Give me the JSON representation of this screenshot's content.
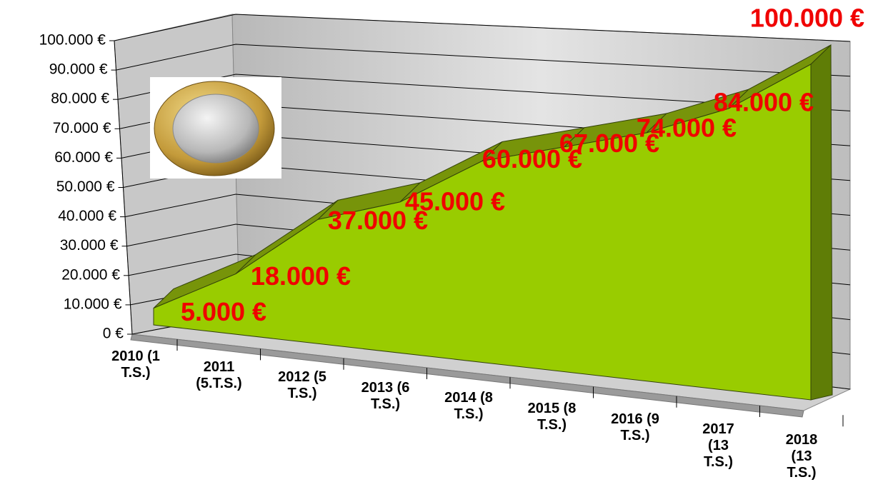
{
  "chart_data": {
    "type": "area3d",
    "categories": [
      "2010 (1 T.S.)",
      "2011 (5.T.S.)",
      "2012 (5 T.S.)",
      "2013 (6 T.S.)",
      "2014 (8 T.S.)",
      "2015 (8 T.S.)",
      "2016 (9 T.S.)",
      "2017 (13 T.S.)",
      "2018 (13 T.S.)"
    ],
    "values": [
      5000,
      18000,
      37000,
      45000,
      60000,
      67000,
      74000,
      84000,
      100000
    ],
    "value_labels": [
      "5.000 €",
      "18.000 €",
      "37.000 €",
      "45.000 €",
      "60.000 €",
      "67.000 €",
      "74.000 €",
      "84.000 €",
      "100.000 €"
    ],
    "color": "#99cc00",
    "ylim": [
      0,
      100000
    ],
    "yticks": [
      {
        "value": 0,
        "label": "0 €"
      },
      {
        "value": 10000,
        "label": "10.000 €"
      },
      {
        "value": 20000,
        "label": "20.000 €"
      },
      {
        "value": 30000,
        "label": "30.000 €"
      },
      {
        "value": 40000,
        "label": "40.000 €"
      },
      {
        "value": 50000,
        "label": "50.000 €"
      },
      {
        "value": 60000,
        "label": "60.000 €"
      },
      {
        "value": 70000,
        "label": "70.000 €"
      },
      {
        "value": 80000,
        "label": "80.000 €"
      },
      {
        "value": 90000,
        "label": "90.000 €"
      },
      {
        "value": 100000,
        "label": "100.000 €"
      }
    ],
    "grid": true
  }
}
